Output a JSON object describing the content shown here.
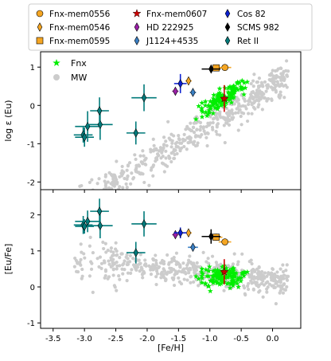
{
  "chart_data": [
    {
      "type": "scatter",
      "panel": "top",
      "xlabel": "",
      "ylabel": "log ε (Eu)",
      "xlim": [
        -3.7,
        0.45
      ],
      "ylim": [
        -2.2,
        1.4
      ],
      "xticks": [
        -3.5,
        -3.0,
        -2.5,
        -2.0,
        -1.5,
        -1.0,
        -0.5,
        0.0
      ],
      "yticks": [
        -2,
        -1,
        0,
        1
      ],
      "ytick_labels": [
        "-2",
        "-1",
        "0",
        "1"
      ],
      "inner_legend": [
        {
          "name": "Fnx",
          "marker": "star",
          "color": "#00ee00"
        },
        {
          "name": "MW",
          "marker": "circle",
          "color": "#cccccc"
        }
      ],
      "series": [
        {
          "name": "Fnx-mem0556",
          "marker": "circle",
          "color": "#f5a623",
          "points": [
            {
              "x": -0.76,
              "y": 0.99,
              "xerr": 0.1,
              "yerr": 0.05
            }
          ]
        },
        {
          "name": "Fnx-mem0546",
          "marker": "thin_diamond",
          "color": "#f5a623",
          "points": [
            {
              "x": -1.34,
              "y": 0.64,
              "xerr": 0.05,
              "yerr": 0.1
            }
          ]
        },
        {
          "name": "Fnx-mem0595",
          "marker": "square",
          "color": "#f5a623",
          "points": [
            {
              "x": -0.9,
              "y": 0.98,
              "xerr": 0.1,
              "yerr": 0.08
            }
          ]
        },
        {
          "name": "Fnx-mem0607",
          "marker": "star",
          "color": "#cc0000",
          "points": [
            {
              "x": -0.77,
              "y": 0.18,
              "xerr": 0.05,
              "yerr": 0.35
            }
          ]
        },
        {
          "name": "HD 222925",
          "marker": "thin_diamond",
          "color": "#9b1fa8",
          "points": [
            {
              "x": -1.55,
              "y": 0.37,
              "xerr": 0.05,
              "yerr": 0.05
            }
          ]
        },
        {
          "name": "J1124+4535",
          "marker": "thin_diamond",
          "color": "#3a7fc4",
          "points": [
            {
              "x": -1.27,
              "y": 0.34,
              "xerr": 0.05,
              "yerr": 0.08
            }
          ]
        },
        {
          "name": "Cos 82",
          "marker": "thin_diamond",
          "color": "#0a1fd0",
          "points": [
            {
              "x": -1.47,
              "y": 0.57,
              "xerr": 0.1,
              "yerr": 0.25
            }
          ]
        },
        {
          "name": "SCMS 982",
          "marker": "thin_diamond",
          "color": "#000000",
          "points": [
            {
              "x": -0.98,
              "y": 0.95,
              "xerr": 0.15,
              "yerr": 0.1
            }
          ]
        },
        {
          "name": "Ret II",
          "marker": "thin_diamond",
          "color": "#007a7a",
          "points": [
            {
              "x": -3.02,
              "y": -0.77,
              "xerr": 0.15,
              "yerr": 0.2
            },
            {
              "x": -3.0,
              "y": -0.83,
              "xerr": 0.15,
              "yerr": 0.25
            },
            {
              "x": -2.95,
              "y": -0.55,
              "xerr": 0.2,
              "yerr": 0.4
            },
            {
              "x": -2.75,
              "y": -0.5,
              "xerr": 0.2,
              "yerr": 0.4
            },
            {
              "x": -2.76,
              "y": -0.14,
              "xerr": 0.15,
              "yerr": 0.35
            },
            {
              "x": -2.18,
              "y": -0.72,
              "xerr": 0.15,
              "yerr": 0.3
            },
            {
              "x": -2.05,
              "y": 0.2,
              "xerr": 0.2,
              "yerr": 0.35
            }
          ]
        }
      ]
    },
    {
      "type": "scatter",
      "panel": "bottom",
      "xlabel": "[Fe/H]",
      "ylabel": "[Eu/Fe]",
      "xlim": [
        -3.7,
        0.45
      ],
      "ylim": [
        -1.15,
        2.7
      ],
      "xticks": [
        -3.5,
        -3.0,
        -2.5,
        -2.0,
        -1.5,
        -1.0,
        -0.5,
        0.0
      ],
      "xtick_labels": [
        "-3.5",
        "-3.0",
        "-2.5",
        "-2.0",
        "-1.5",
        "-1.0",
        "-0.5",
        "0.0"
      ],
      "yticks": [
        -1,
        0,
        1,
        2
      ],
      "ytick_labels": [
        "-1",
        "0",
        "1",
        "2"
      ],
      "series": [
        {
          "name": "Fnx-mem0556",
          "marker": "circle",
          "color": "#f5a623",
          "points": [
            {
              "x": -0.76,
              "y": 1.25,
              "xerr": 0.1,
              "yerr": 0.08
            }
          ]
        },
        {
          "name": "Fnx-mem0546",
          "marker": "thin_diamond",
          "color": "#f5a623",
          "points": [
            {
              "x": -1.34,
              "y": 1.5,
              "xerr": 0.05,
              "yerr": 0.1
            }
          ]
        },
        {
          "name": "Fnx-mem0595",
          "marker": "square",
          "color": "#f5a623",
          "points": [
            {
              "x": -0.9,
              "y": 1.38,
              "xerr": 0.1,
              "yerr": 0.1
            }
          ]
        },
        {
          "name": "Fnx-mem0607",
          "marker": "star",
          "color": "#cc0000",
          "points": [
            {
              "x": -0.77,
              "y": 0.42,
              "xerr": 0.05,
              "yerr": 0.35
            }
          ]
        },
        {
          "name": "HD 222925",
          "marker": "thin_diamond",
          "color": "#9b1fa8",
          "points": [
            {
              "x": -1.55,
              "y": 1.45,
              "xerr": 0.05,
              "yerr": 0.05
            }
          ]
        },
        {
          "name": "J1124+4535",
          "marker": "thin_diamond",
          "color": "#3a7fc4",
          "points": [
            {
              "x": -1.27,
              "y": 1.1,
              "xerr": 0.08,
              "yerr": 0.1
            }
          ]
        },
        {
          "name": "Cos 82",
          "marker": "thin_diamond",
          "color": "#0a1fd0",
          "points": [
            {
              "x": -1.47,
              "y": 1.5,
              "xerr": 0.1,
              "yerr": 0.15
            }
          ]
        },
        {
          "name": "SCMS 982",
          "marker": "thin_diamond",
          "color": "#000000",
          "points": [
            {
              "x": -0.98,
              "y": 1.4,
              "xerr": 0.15,
              "yerr": 0.2
            }
          ]
        },
        {
          "name": "Ret II",
          "marker": "thin_diamond",
          "color": "#007a7a",
          "points": [
            {
              "x": -3.02,
              "y": 1.72,
              "xerr": 0.15,
              "yerr": 0.25
            },
            {
              "x": -3.0,
              "y": 1.68,
              "xerr": 0.15,
              "yerr": 0.2
            },
            {
              "x": -2.95,
              "y": 1.82,
              "xerr": 0.2,
              "yerr": 0.3
            },
            {
              "x": -2.75,
              "y": 1.7,
              "xerr": 0.2,
              "yerr": 0.35
            },
            {
              "x": -2.76,
              "y": 2.1,
              "xerr": 0.15,
              "yerr": 0.35
            },
            {
              "x": -2.18,
              "y": 0.95,
              "xerr": 0.15,
              "yerr": 0.3
            },
            {
              "x": -2.05,
              "y": 1.75,
              "xerr": 0.2,
              "yerr": 0.35
            }
          ]
        }
      ]
    }
  ],
  "legend": {
    "columns": 3,
    "placement": "top",
    "entries": [
      {
        "name": "Fnx-mem0556",
        "marker": "circle",
        "color": "#f5a623"
      },
      {
        "name": "Fnx-mem0607",
        "marker": "star",
        "color": "#cc0000"
      },
      {
        "name": "Cos 82",
        "marker": "thin_diamond",
        "color": "#0a1fd0"
      },
      {
        "name": "Fnx-mem0546",
        "marker": "thin_diamond",
        "color": "#f5a623"
      },
      {
        "name": "HD 222925",
        "marker": "thin_diamond",
        "color": "#9b1fa8"
      },
      {
        "name": "SCMS 982",
        "marker": "thin_diamond",
        "color": "#000000"
      },
      {
        "name": "Fnx-mem0595",
        "marker": "square",
        "color": "#f5a623"
      },
      {
        "name": "J1124+4535",
        "marker": "thin_diamond",
        "color": "#3a7fc4"
      },
      {
        "name": "Ret II",
        "marker": "thin_diamond",
        "color": "#007a7a"
      }
    ]
  },
  "colors": {
    "fnx": "#00ee00",
    "mw": "#cccccc"
  }
}
